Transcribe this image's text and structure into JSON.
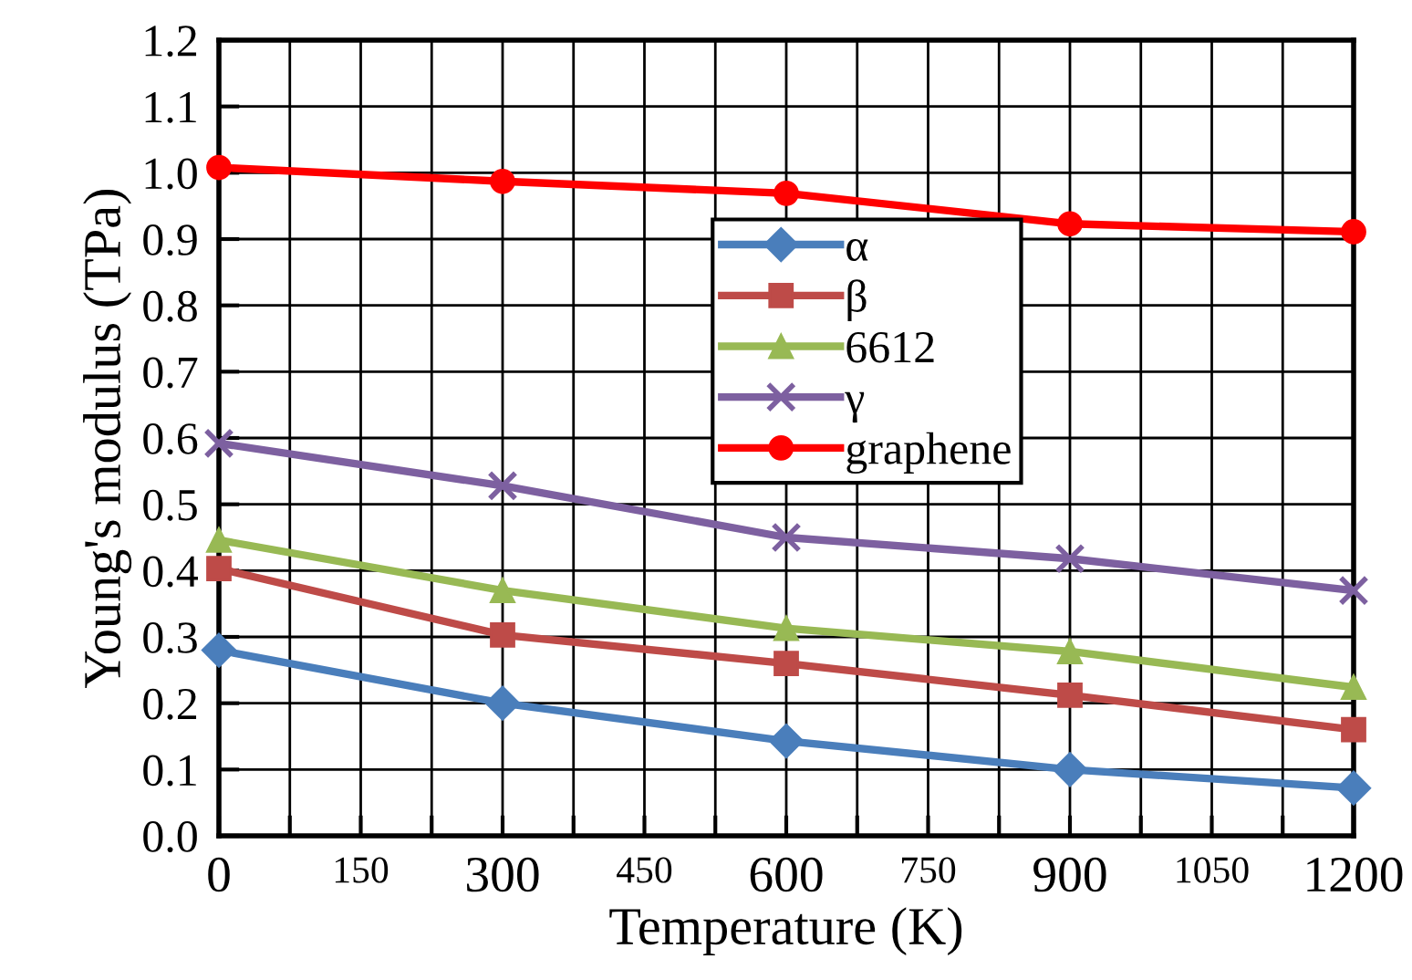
{
  "chart_data": {
    "type": "line",
    "xlabel": "Temperature (K)",
    "ylabel": "Young's modulus (TPa)",
    "x": [
      0,
      300,
      600,
      900,
      1200
    ],
    "series": [
      {
        "name": "α",
        "color": "#4a7ebb",
        "marker": "diamond",
        "values": [
          0.28,
          0.2,
          0.143,
          0.1,
          0.072
        ]
      },
      {
        "name": "β",
        "color": "#be4b48",
        "marker": "square",
        "values": [
          0.403,
          0.303,
          0.26,
          0.212,
          0.16
        ]
      },
      {
        "name": "6612",
        "color": "#98b954",
        "marker": "triangle",
        "values": [
          0.446,
          0.37,
          0.313,
          0.278,
          0.224
        ]
      },
      {
        "name": "γ",
        "color": "#7d60a0",
        "marker": "cross",
        "values": [
          0.592,
          0.528,
          0.45,
          0.418,
          0.37
        ]
      },
      {
        "name": "graphene",
        "color": "#ff0000",
        "marker": "circle",
        "values": [
          1.008,
          0.987,
          0.969,
          0.923,
          0.911
        ]
      }
    ],
    "xlim": [
      0,
      1200
    ],
    "xticks": [
      0,
      {
        "value": 75,
        "label": null
      },
      150,
      {
        "value": 225,
        "label": null
      },
      300,
      {
        "value": 375,
        "label": null
      },
      450,
      {
        "value": 525,
        "label": null
      },
      600,
      {
        "value": 675,
        "label": null
      },
      750,
      {
        "value": 825,
        "label": null
      },
      900,
      {
        "value": 975,
        "label": null
      },
      1050,
      {
        "value": 1125,
        "label": null
      },
      1200
    ],
    "ylim": [
      0,
      1.2
    ],
    "yticks": [
      {
        "value": 0,
        "label": "0.0"
      },
      0.1,
      0.2,
      0.3,
      0.4,
      0.5,
      0.6,
      0.7,
      0.8,
      0.9,
      {
        "value": 1.0,
        "label": "1.0"
      },
      1.1,
      1.2
    ],
    "grid": true,
    "legend": "top",
    "line_style": "solid"
  }
}
